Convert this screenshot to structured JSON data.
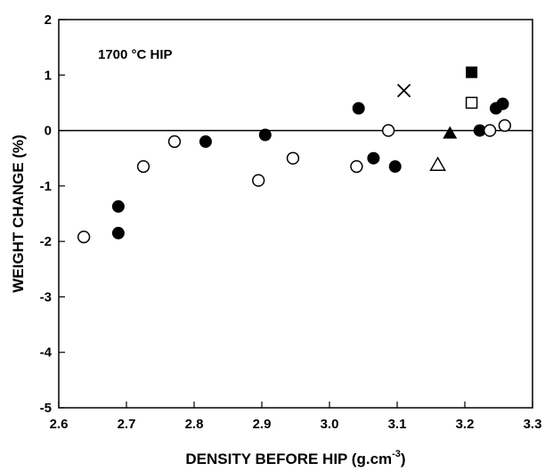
{
  "chart_data": {
    "type": "scatter",
    "annotation": "1700 °C HIP",
    "xlabel": "DENSITY BEFORE HIP  (g.cm",
    "xlabel_sup": "-3",
    "xlabel_end": ")",
    "ylabel": "WEIGHT CHANGE  (%)",
    "xlim": [
      2.6,
      3.3
    ],
    "ylim": [
      -5,
      2
    ],
    "xticks": [
      "2.6",
      "2.7",
      "2.8",
      "2.9",
      "3.0",
      "3.1",
      "3.2",
      "3.3"
    ],
    "yticks": [
      "-5",
      "-4",
      "-3",
      "-2",
      "-1",
      "0",
      "1",
      "2"
    ],
    "zero_line": 0,
    "grid": false,
    "series": [
      {
        "marker": "filled-circle",
        "points": [
          {
            "x": 2.688,
            "y": -1.37
          },
          {
            "x": 2.688,
            "y": -1.85
          },
          {
            "x": 2.817,
            "y": -0.2
          },
          {
            "x": 2.905,
            "y": -0.08
          },
          {
            "x": 3.043,
            "y": 0.4
          },
          {
            "x": 3.065,
            "y": -0.5
          },
          {
            "x": 3.097,
            "y": -0.65
          },
          {
            "x": 3.222,
            "y": 0.0
          },
          {
            "x": 3.246,
            "y": 0.4
          },
          {
            "x": 3.256,
            "y": 0.48
          }
        ]
      },
      {
        "marker": "open-circle",
        "points": [
          {
            "x": 2.637,
            "y": -1.92
          },
          {
            "x": 2.725,
            "y": -0.65
          },
          {
            "x": 2.771,
            "y": -0.2
          },
          {
            "x": 2.895,
            "y": -0.9
          },
          {
            "x": 2.946,
            "y": -0.5
          },
          {
            "x": 3.04,
            "y": -0.65
          },
          {
            "x": 3.087,
            "y": 0.0
          },
          {
            "x": 3.237,
            "y": 0.0
          },
          {
            "x": 3.259,
            "y": 0.09
          }
        ]
      },
      {
        "marker": "filled-square",
        "points": [
          {
            "x": 3.21,
            "y": 1.05
          }
        ]
      },
      {
        "marker": "open-square",
        "points": [
          {
            "x": 3.21,
            "y": 0.5
          }
        ]
      },
      {
        "marker": "filled-triangle",
        "points": [
          {
            "x": 3.178,
            "y": -0.05
          }
        ]
      },
      {
        "marker": "open-triangle",
        "points": [
          {
            "x": 3.16,
            "y": -0.62
          }
        ]
      },
      {
        "marker": "cross",
        "points": [
          {
            "x": 3.11,
            "y": 0.72
          }
        ]
      }
    ]
  }
}
